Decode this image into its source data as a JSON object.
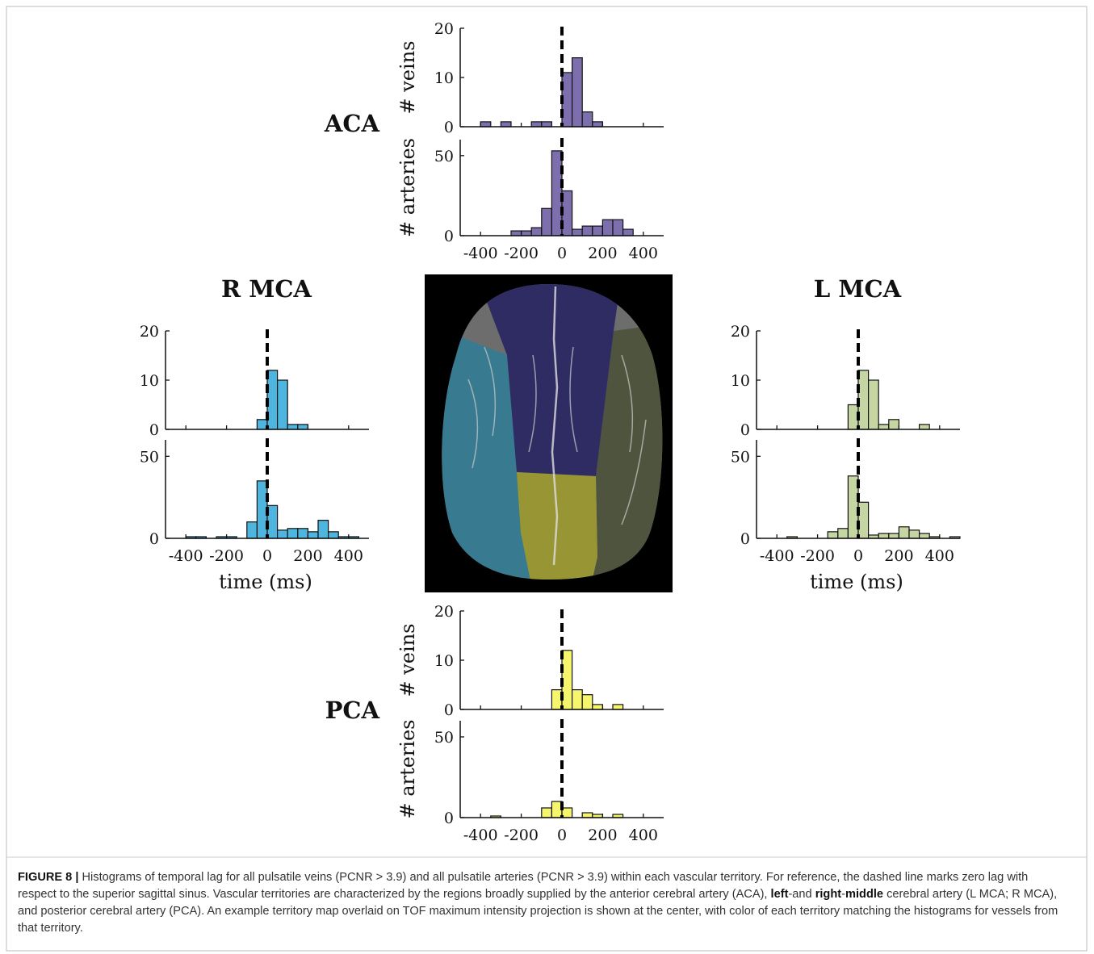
{
  "chart_data": [
    {
      "type": "histogram",
      "title": "ACA",
      "ylabel": "# veins",
      "color": "#7d6fae",
      "bins": [
        -500,
        -450,
        -400,
        -350,
        -300,
        -250,
        -200,
        -150,
        -100,
        -50,
        0,
        50,
        100,
        150,
        200,
        250,
        300,
        350,
        400,
        450,
        500
      ],
      "values": [
        0,
        0,
        1,
        0,
        1,
        0,
        0,
        1,
        1,
        0,
        11,
        14,
        3,
        1,
        0,
        0,
        0,
        0,
        0,
        0
      ],
      "xlim": [
        -500,
        500
      ],
      "xticks": [
        -400,
        -200,
        0,
        200,
        400
      ],
      "xtick_labels": false,
      "ylim": [
        0,
        20
      ],
      "yticks": [
        0,
        10,
        20
      ],
      "vline": 0
    },
    {
      "type": "histogram",
      "ylabel": "# arteries",
      "color": "#7d6fae",
      "bins": [
        -500,
        -450,
        -400,
        -350,
        -300,
        -250,
        -200,
        -150,
        -100,
        -50,
        0,
        50,
        100,
        150,
        200,
        250,
        300,
        350,
        400,
        450,
        500
      ],
      "values": [
        0,
        0,
        0,
        0,
        0,
        3,
        3,
        5,
        17,
        53,
        28,
        4,
        6,
        6,
        10,
        10,
        4,
        0,
        0,
        0
      ],
      "xlim": [
        -500,
        500
      ],
      "xticks": [
        -400,
        -200,
        0,
        200,
        400
      ],
      "xtick_labels": true,
      "ylim": [
        0,
        60
      ],
      "yticks": [
        0,
        50
      ],
      "vline": 0
    },
    {
      "type": "histogram",
      "title": "R MCA",
      "color": "#4db5de",
      "bins": [
        -500,
        -450,
        -400,
        -350,
        -300,
        -250,
        -200,
        -150,
        -100,
        -50,
        0,
        50,
        100,
        150,
        200,
        250,
        300,
        350,
        400,
        450,
        500
      ],
      "values": [
        0,
        0,
        0,
        0,
        0,
        0,
        0,
        0,
        0,
        2,
        12,
        10,
        1,
        1,
        0,
        0,
        0,
        0,
        0,
        0
      ],
      "xlim": [
        -500,
        500
      ],
      "xticks": [
        -400,
        -200,
        0,
        200,
        400
      ],
      "xtick_labels": false,
      "ylim": [
        0,
        20
      ],
      "yticks": [
        0,
        10,
        20
      ],
      "vline": 0
    },
    {
      "type": "histogram",
      "xlabel": "time (ms)",
      "color": "#4db5de",
      "bins": [
        -500,
        -450,
        -400,
        -350,
        -300,
        -250,
        -200,
        -150,
        -100,
        -50,
        0,
        50,
        100,
        150,
        200,
        250,
        300,
        350,
        400,
        450,
        500
      ],
      "values": [
        0,
        0,
        1,
        1,
        0,
        1,
        1,
        0,
        10,
        35,
        20,
        5,
        6,
        6,
        4,
        11,
        4,
        1,
        1,
        0
      ],
      "xlim": [
        -500,
        500
      ],
      "xticks": [
        -400,
        -200,
        0,
        200,
        400
      ],
      "xtick_labels": true,
      "ylim": [
        0,
        60
      ],
      "yticks": [
        0,
        50
      ],
      "vline": 0
    },
    {
      "type": "histogram",
      "title": "L MCA",
      "color": "#c6d6a2",
      "bins": [
        -500,
        -450,
        -400,
        -350,
        -300,
        -250,
        -200,
        -150,
        -100,
        -50,
        0,
        50,
        100,
        150,
        200,
        250,
        300,
        350,
        400,
        450,
        500
      ],
      "values": [
        0,
        0,
        0,
        0,
        0,
        0,
        0,
        0,
        0,
        5,
        12,
        10,
        1,
        2,
        0,
        0,
        1,
        0,
        0,
        0
      ],
      "xlim": [
        -500,
        500
      ],
      "xticks": [
        -400,
        -200,
        0,
        200,
        400
      ],
      "xtick_labels": false,
      "ylim": [
        0,
        20
      ],
      "yticks": [
        0,
        10,
        20
      ],
      "vline": 0
    },
    {
      "type": "histogram",
      "xlabel": "time (ms)",
      "color": "#c6d6a2",
      "bins": [
        -500,
        -450,
        -400,
        -350,
        -300,
        -250,
        -200,
        -150,
        -100,
        -50,
        0,
        50,
        100,
        150,
        200,
        250,
        300,
        350,
        400,
        450,
        500
      ],
      "values": [
        0,
        0,
        0,
        1,
        0,
        0,
        0,
        4,
        6,
        38,
        22,
        2,
        3,
        3,
        7,
        5,
        3,
        1,
        0,
        1
      ],
      "xlim": [
        -500,
        500
      ],
      "xticks": [
        -400,
        -200,
        0,
        200,
        400
      ],
      "xtick_labels": true,
      "ylim": [
        0,
        60
      ],
      "yticks": [
        0,
        50
      ],
      "vline": 0
    },
    {
      "type": "histogram",
      "title": "PCA",
      "ylabel": "# veins",
      "color": "#f5f56e",
      "bins": [
        -500,
        -450,
        -400,
        -350,
        -300,
        -250,
        -200,
        -150,
        -100,
        -50,
        0,
        50,
        100,
        150,
        200,
        250,
        300,
        350,
        400,
        450,
        500
      ],
      "values": [
        0,
        0,
        0,
        0,
        0,
        0,
        0,
        0,
        0,
        4,
        12,
        4,
        3,
        1,
        0,
        1,
        0,
        0,
        0,
        0
      ],
      "xlim": [
        -500,
        500
      ],
      "xticks": [
        -400,
        -200,
        0,
        200,
        400
      ],
      "xtick_labels": false,
      "ylim": [
        0,
        20
      ],
      "yticks": [
        0,
        10,
        20
      ],
      "vline": 0
    },
    {
      "type": "histogram",
      "ylabel": "# arteries",
      "color": "#f5f56e",
      "bins": [
        -500,
        -450,
        -400,
        -350,
        -300,
        -250,
        -200,
        -150,
        -100,
        -50,
        0,
        50,
        100,
        150,
        200,
        250,
        300,
        350,
        400,
        450,
        500
      ],
      "values": [
        0,
        0,
        0,
        1,
        0,
        0,
        0,
        0,
        6,
        10,
        6,
        0,
        3,
        2,
        0,
        2,
        0,
        0,
        0,
        0
      ],
      "xlim": [
        -500,
        500
      ],
      "xticks": [
        -400,
        -200,
        0,
        200,
        400
      ],
      "xtick_labels": true,
      "ylim": [
        0,
        60
      ],
      "yticks": [
        0,
        50
      ],
      "vline": 0
    }
  ],
  "caption": [
    {
      "text": "FIGURE 8 |",
      "bold": true
    },
    {
      "text": " Histograms of temporal lag for all pulsatile veins (PCNR > 3.9) and all pulsatile arteries (PCNR > 3.9) within each vascular territory. For reference, the dashed line marks zero lag with respect to the superior sagittal sinus. Vascular territories are characterized by the regions broadly supplied by the anterior cerebral artery (ACA), "
    },
    {
      "text": "left",
      "bold": true
    },
    {
      "text": "-and "
    },
    {
      "text": "right",
      "bold": true
    },
    {
      "text": "-"
    },
    {
      "text": "middle",
      "bold": true
    },
    {
      "text": " cerebral artery (L MCA; R MCA), and posterior cerebral artery (PCA). An example territory map overlaid on TOF maximum intensity projection is shown at the center, with color of each territory matching the histograms for vessels from that territory."
    }
  ]
}
